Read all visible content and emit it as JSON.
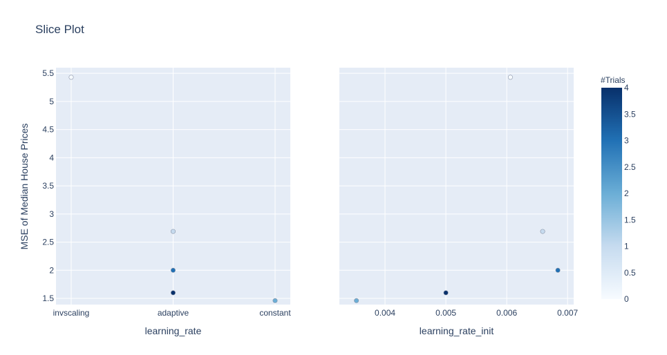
{
  "title": "Slice Plot",
  "colors": {
    "plot_bg": "#e5ecf6",
    "grid": "#ffffff",
    "text": "#2a3f5f",
    "colorscale": [
      "#f7fbff",
      "#c6dbef",
      "#6baed6",
      "#2171b5",
      "#08306b"
    ]
  },
  "chart_data": [
    {
      "type": "scatter",
      "xlabel": "learning_rate",
      "ylabel": "MSE of Median House Prices",
      "x_categories": [
        "invscaling",
        "adaptive",
        "constant"
      ],
      "y_ticks": [
        "1.5",
        "2",
        "2.5",
        "3",
        "3.5",
        "4",
        "4.5",
        "5",
        "5.5"
      ],
      "ylim": [
        1.39,
        5.6
      ],
      "points": [
        {
          "x": "invscaling",
          "y": 5.43,
          "trial": 0
        },
        {
          "x": "adaptive",
          "y": 2.69,
          "trial": 1
        },
        {
          "x": "adaptive",
          "y": 2.0,
          "trial": 3
        },
        {
          "x": "adaptive",
          "y": 1.6,
          "trial": 4
        },
        {
          "x": "constant",
          "y": 1.46,
          "trial": 2
        }
      ]
    },
    {
      "type": "scatter",
      "xlabel": "learning_rate_init",
      "ylabel": "",
      "x_ticks": [
        "0.004",
        "0.005",
        "0.006",
        "0.007"
      ],
      "xlim": [
        0.00325,
        0.0071
      ],
      "ylim": [
        1.39,
        5.6
      ],
      "points": [
        {
          "x": 0.00606,
          "y": 5.43,
          "trial": 0
        },
        {
          "x": 0.00659,
          "y": 2.69,
          "trial": 1
        },
        {
          "x": 0.00684,
          "y": 2.0,
          "trial": 3
        },
        {
          "x": 0.005,
          "y": 1.6,
          "trial": 4
        },
        {
          "x": 0.00353,
          "y": 1.46,
          "trial": 2
        }
      ]
    }
  ],
  "colorbar": {
    "title": "#Trials",
    "ticks": [
      "0",
      "0.5",
      "1",
      "1.5",
      "2",
      "2.5",
      "3",
      "3.5",
      "4"
    ],
    "range": [
      0,
      4
    ]
  }
}
